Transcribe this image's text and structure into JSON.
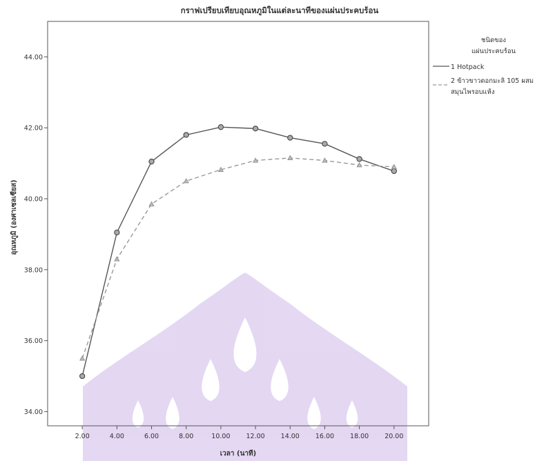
{
  "chart_data": {
    "type": "line",
    "title": "กราฟเปรียบเทียบอุณหภูมิในแต่ละนาทีของแผ่นประคบร้อน",
    "xlabel": "เวลา (นาที)",
    "ylabel": "อุณหภูมิ (องศาเซลเซียส)",
    "x": [
      2,
      4,
      6,
      8,
      10,
      12,
      14,
      16,
      18,
      20
    ],
    "x_tick_labels": [
      "2.00",
      "4.00",
      "6.00",
      "8.00",
      "10.00",
      "12.00",
      "14.00",
      "16.00",
      "18.00",
      "20.00"
    ],
    "xlim": [
      0,
      22
    ],
    "ylim": [
      33.6,
      45.0
    ],
    "y_ticks": [
      34,
      36,
      38,
      40,
      42,
      44
    ],
    "y_tick_labels": [
      "34.00",
      "36.00",
      "38.00",
      "40.00",
      "42.00",
      "44.00"
    ],
    "grid": false,
    "legend": {
      "title_line1": "ชนิดของ",
      "title_line2": "แผ่นประคบร้อน",
      "placement": "right"
    },
    "series": [
      {
        "name": "1 Hotpack",
        "color": "#555555",
        "style": "solid",
        "marker": "circle",
        "values": [
          35.0,
          39.05,
          41.05,
          41.8,
          42.02,
          41.98,
          41.72,
          41.55,
          41.12,
          40.78
        ]
      },
      {
        "name": "2 ข้าวขาวดอกมะลิ 105 ผสม สมุนไพรอบแห้ง",
        "name_line1": "2 ข้าวขาวดอกมะลิ 105 ผสม",
        "name_line2": "สมุนไพรอบแห้ง",
        "color": "#999999",
        "style": "dashed",
        "marker": "triangle",
        "values": [
          35.5,
          38.3,
          39.85,
          40.5,
          40.82,
          41.08,
          41.15,
          41.08,
          40.95,
          40.9
        ]
      }
    ]
  },
  "watermark": {
    "color": "#cdb8e8"
  }
}
